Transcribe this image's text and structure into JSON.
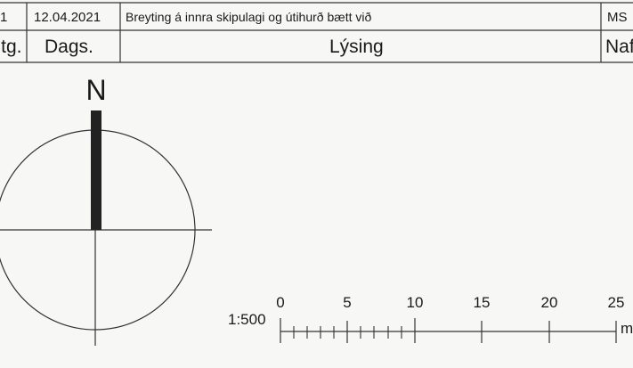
{
  "revision_table": {
    "row": {
      "rev": "1",
      "date": "12.04.2021",
      "description": "Breyting á innra skipulagi og útihurð bætt við",
      "initials": "MS"
    },
    "header": {
      "rev": "Útg.",
      "date": "Dags.",
      "description": "Lýsing",
      "name": "Nafn"
    }
  },
  "north_arrow": {
    "label": "N"
  },
  "scale_bar": {
    "ratio": "1:500",
    "ticks": [
      "0",
      "5",
      "10",
      "15",
      "20",
      "25"
    ],
    "unit": "m"
  }
}
